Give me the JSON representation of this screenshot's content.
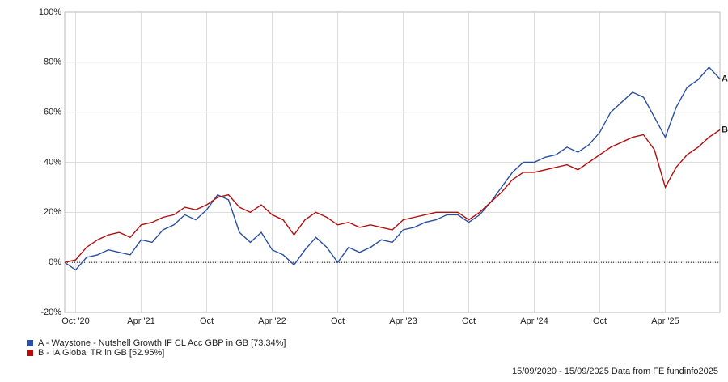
{
  "chart_data": {
    "type": "line",
    "x": [
      "2020-09",
      "2020-10",
      "2020-11",
      "2020-12",
      "2021-01",
      "2021-02",
      "2021-03",
      "2021-04",
      "2021-05",
      "2021-06",
      "2021-07",
      "2021-08",
      "2021-09",
      "2021-10",
      "2021-11",
      "2021-12",
      "2022-01",
      "2022-02",
      "2022-03",
      "2022-04",
      "2022-05",
      "2022-06",
      "2022-07",
      "2022-08",
      "2022-09",
      "2022-10",
      "2022-11",
      "2022-12",
      "2023-01",
      "2023-02",
      "2023-03",
      "2023-04",
      "2023-05",
      "2023-06",
      "2023-07",
      "2023-08",
      "2023-09",
      "2023-10",
      "2023-11",
      "2023-12",
      "2024-01",
      "2024-02",
      "2024-03",
      "2024-04",
      "2024-05",
      "2024-06",
      "2024-07",
      "2024-08",
      "2024-09",
      "2024-10",
      "2024-11",
      "2024-12",
      "2025-01",
      "2025-02",
      "2025-03",
      "2025-04",
      "2025-05",
      "2025-06",
      "2025-07",
      "2025-08",
      "2025-09"
    ],
    "series": [
      {
        "name": "A - Waystone - Nutshell Growth IF CL Acc GBP in GB [73.34%]",
        "label": "A",
        "color": "#2a4fa0",
        "values": [
          0,
          -3,
          2,
          3,
          5,
          4,
          3,
          9,
          8,
          13,
          15,
          19,
          17,
          21,
          27,
          25,
          12,
          8,
          12,
          5,
          3,
          -1,
          5,
          10,
          6,
          0,
          6,
          4,
          6,
          9,
          8,
          13,
          14,
          16,
          17,
          19,
          19,
          16,
          19,
          24,
          30,
          36,
          40,
          40,
          42,
          43,
          46,
          44,
          47,
          52,
          60,
          64,
          68,
          66,
          58,
          50,
          62,
          70,
          73,
          78,
          73.34
        ]
      },
      {
        "name": "B - IA Global TR in GB [52.95%]",
        "label": "B",
        "color": "#b00f0f",
        "values": [
          0,
          1,
          6,
          9,
          11,
          12,
          10,
          15,
          16,
          18,
          19,
          22,
          21,
          23,
          26,
          27,
          22,
          20,
          23,
          19,
          17,
          11,
          17,
          20,
          18,
          15,
          16,
          14,
          15,
          14,
          13,
          17,
          18,
          19,
          20,
          20,
          20,
          17,
          20,
          24,
          28,
          33,
          36,
          36,
          37,
          38,
          39,
          37,
          40,
          43,
          46,
          48,
          50,
          51,
          45,
          30,
          38,
          43,
          46,
          50,
          52.95
        ]
      }
    ],
    "xticks": [
      {
        "value": "2020-10",
        "label": "Oct '20"
      },
      {
        "value": "2021-04",
        "label": "Apr '21"
      },
      {
        "value": "2021-10",
        "label": "Oct"
      },
      {
        "value": "2022-04",
        "label": "Apr '22"
      },
      {
        "value": "2022-10",
        "label": "Oct"
      },
      {
        "value": "2023-04",
        "label": "Apr '23"
      },
      {
        "value": "2023-10",
        "label": "Oct"
      },
      {
        "value": "2024-04",
        "label": "Apr '24"
      },
      {
        "value": "2024-10",
        "label": "Oct"
      },
      {
        "value": "2025-04",
        "label": "Apr '25"
      }
    ],
    "ylim": [
      -20,
      100
    ],
    "yticks": [
      {
        "value": -20,
        "label": "-20%"
      },
      {
        "value": 0,
        "label": "0%"
      },
      {
        "value": 20,
        "label": "20%"
      },
      {
        "value": 40,
        "label": "40%"
      },
      {
        "value": 60,
        "label": "60%"
      },
      {
        "value": 80,
        "label": "80%"
      },
      {
        "value": 100,
        "label": "100%"
      }
    ],
    "grid": true,
    "footer": "15/09/2020 - 15/09/2025 Data from FE fundinfo2025"
  }
}
